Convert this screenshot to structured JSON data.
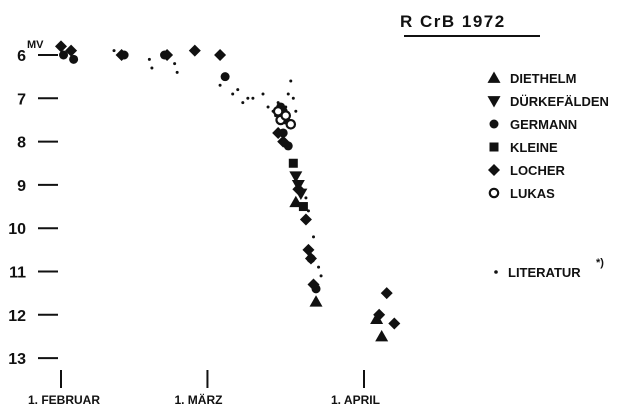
{
  "chart_data": {
    "type": "scatter",
    "title": "R CrB 1972",
    "ylabel": "MV",
    "y_inverted": true,
    "ylim": [
      5.5,
      13.2
    ],
    "xlim": [
      -4,
      66
    ],
    "y_ticks": [
      6,
      7,
      8,
      9,
      10,
      11,
      12,
      13
    ],
    "x_ticks": [
      {
        "day": 0,
        "label": "1. FEBRUAR"
      },
      {
        "day": 29,
        "label": "1. MÄRZ"
      },
      {
        "day": 60,
        "label": "1. APRIL"
      }
    ],
    "legend_placement": "right",
    "legend_note": "*)",
    "series": [
      {
        "name": "DIETHELM",
        "marker": "triangle-up",
        "points": [
          [
            46.5,
            9.4
          ],
          [
            50.5,
            11.7
          ],
          [
            62.5,
            12.1
          ],
          [
            63.5,
            12.5
          ]
        ]
      },
      {
        "name": "DÜRKEFÄLDEN",
        "marker": "triangle-down",
        "points": [
          [
            46.5,
            8.8
          ],
          [
            47.0,
            9.0
          ],
          [
            47.5,
            9.2
          ]
        ]
      },
      {
        "name": "GERMANN",
        "marker": "circle",
        "points": [
          [
            0.5,
            6.0
          ],
          [
            2.5,
            6.1
          ],
          [
            12.5,
            6.0
          ],
          [
            20.5,
            6.0
          ],
          [
            32.5,
            6.5
          ],
          [
            43.5,
            7.2
          ],
          [
            44.0,
            7.3
          ],
          [
            44.5,
            7.5
          ],
          [
            44.0,
            7.8
          ],
          [
            45.0,
            8.1
          ],
          [
            49.5,
            10.7
          ],
          [
            50.5,
            11.4
          ]
        ]
      },
      {
        "name": "KLEINE",
        "marker": "square",
        "points": [
          [
            46.0,
            8.5
          ],
          [
            48.0,
            9.5
          ]
        ]
      },
      {
        "name": "LOCHER",
        "marker": "diamond",
        "points": [
          [
            0.0,
            5.8
          ],
          [
            2.0,
            5.9
          ],
          [
            12.0,
            6.0
          ],
          [
            21.0,
            6.0
          ],
          [
            26.5,
            5.9
          ],
          [
            31.5,
            6.0
          ],
          [
            43.0,
            7.8
          ],
          [
            44.0,
            8.0
          ],
          [
            47.0,
            9.1
          ],
          [
            48.5,
            9.8
          ],
          [
            49.0,
            10.5
          ],
          [
            49.5,
            10.7
          ],
          [
            50.0,
            11.3
          ],
          [
            63.0,
            12.0
          ],
          [
            64.5,
            11.5
          ],
          [
            66.0,
            12.2
          ]
        ]
      },
      {
        "name": "LUKAS",
        "marker": "circle-open",
        "points": [
          [
            43.0,
            7.3
          ],
          [
            43.5,
            7.5
          ],
          [
            44.5,
            7.4
          ],
          [
            45.5,
            7.6
          ]
        ]
      },
      {
        "name": "LITERATUR",
        "marker": "dot",
        "points": [
          [
            10.5,
            5.9
          ],
          [
            17.5,
            6.1
          ],
          [
            18.0,
            6.3
          ],
          [
            22.5,
            6.2
          ],
          [
            23.0,
            6.4
          ],
          [
            31.5,
            6.7
          ],
          [
            34.0,
            6.9
          ],
          [
            35.0,
            6.8
          ],
          [
            36.0,
            7.1
          ],
          [
            37.0,
            7.0
          ],
          [
            38.0,
            7.0
          ],
          [
            40.0,
            6.9
          ],
          [
            41.0,
            7.2
          ],
          [
            42.0,
            7.3
          ],
          [
            42.5,
            7.4
          ],
          [
            43.0,
            7.1
          ],
          [
            44.5,
            7.2
          ],
          [
            45.0,
            6.9
          ],
          [
            45.5,
            6.6
          ],
          [
            46.0,
            7.0
          ],
          [
            46.5,
            7.3
          ],
          [
            48.5,
            9.3
          ],
          [
            49.0,
            9.6
          ],
          [
            50.0,
            10.2
          ],
          [
            51.0,
            10.9
          ],
          [
            51.5,
            11.1
          ]
        ]
      }
    ]
  }
}
